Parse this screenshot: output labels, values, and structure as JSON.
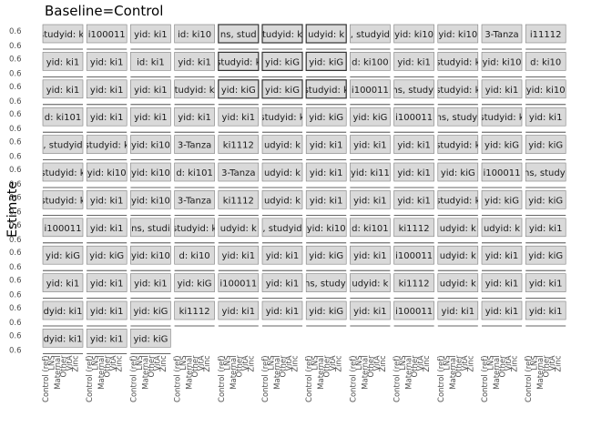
{
  "chart_data": {
    "type": "scatter",
    "title": "Baseline=Control",
    "ylabel": "Estimate",
    "xlabel": "",
    "categories": [
      "Control (ref)",
      "LNS",
      "Maternal",
      "Other",
      "VitA",
      "Zinc"
    ],
    "y_tick_label": "0.6",
    "facet_rows": 12,
    "facet_cols": 11,
    "facet_strips": [
      [
        "studyid: ki",
        "i100011",
        "yid: ki1",
        "id: ki10",
        "ns, stud",
        "tudyid: k",
        "udyid: k",
        ", studyid",
        "yid: ki10",
        "yid: ki10",
        "3-Tanza",
        "i11112"
      ],
      [
        "yid: ki1",
        "yid: ki1",
        "id: ki1",
        "yid: ki1",
        "studyid: k",
        "yid: kiG",
        "yid: kiG",
        "d: ki100",
        "yid: ki1",
        "studyid: k",
        "yid: ki10",
        "d: ki10"
      ],
      [
        "yid: ki1",
        "yid: ki1",
        "yid: ki1",
        "tudyid: k",
        "yid: kiG",
        "yid: kiG",
        "studyid: k",
        "i100011",
        "ns, studyi",
        "studyid: k",
        "yid: ki1",
        "yid: ki10"
      ],
      [
        "d: ki101",
        "yid: ki1",
        "yid: ki1",
        "yid: ki1",
        "yid: ki1",
        "studyid: k",
        "yid: kiG",
        "yid: kiG",
        "i100011",
        "ns, studyi",
        "studyid: k",
        "yid: ki1"
      ],
      [
        ", studyid",
        "studyid: k",
        "yid: ki10",
        "3-Tanza",
        "ki1112",
        "udyid: k",
        "yid: ki1",
        "yid: ki1",
        "yid: ki1",
        "studyid: k",
        "yid: kiG",
        "yid: kiG"
      ],
      [
        "studyid: k",
        "yid: ki10",
        "yid: ki10",
        "d: ki101",
        "3-Tanza",
        "udyid: k",
        "yid: ki1",
        "yid: ki11",
        "yid: ki1",
        "yid: kiG",
        "i100011",
        "ns, studyi"
      ],
      [
        "studyid: k",
        "yid: ki1",
        "yid: ki10",
        "3-Tanza",
        "ki1112",
        "udyid: k",
        "yid: ki1",
        "yid: ki1",
        "yid: ki1",
        "studyid: k",
        "yid: kiG",
        "yid: kiG"
      ],
      [
        "i100011",
        "yid: ki1",
        "ns, studi",
        "studyid: k",
        "udyid: k",
        ", studyid",
        "yid: ki10",
        "d: ki101",
        "ki1112",
        "udyid: k",
        "udyid: k",
        "yid: ki1"
      ],
      [
        "yid: kiG",
        "yid: kiG",
        "yid: ki10",
        "d: ki10",
        "yid: ki1",
        "yid: ki1",
        "yid: kiG",
        "yid: ki1",
        "i100011",
        "udyid: k",
        "yid: ki1",
        "yid: kiG"
      ],
      [
        "yid: ki1",
        "yid: ki1",
        "yid: ki1",
        "yid: kiG",
        "i100011",
        "yid: ki1",
        "ns, studyi",
        "udyid: k",
        "ki1112",
        "udyid: k",
        "yid: ki1",
        "yid: ki1"
      ],
      [
        "dyid: ki1",
        "yid: ki1",
        "yid: kiG",
        "ki1112",
        "yid: ki1",
        "yid: ki1",
        "yid: kiG",
        "yid: ki1",
        "i100011",
        "yid: ki1",
        "yid: ki1",
        "yid: ki1"
      ],
      [
        "dyid: ki1",
        "yid: ki1",
        "yid: kiG",
        "",
        "",
        "",
        "",
        "",
        "",
        "",
        "",
        ""
      ]
    ],
    "grid": true
  }
}
